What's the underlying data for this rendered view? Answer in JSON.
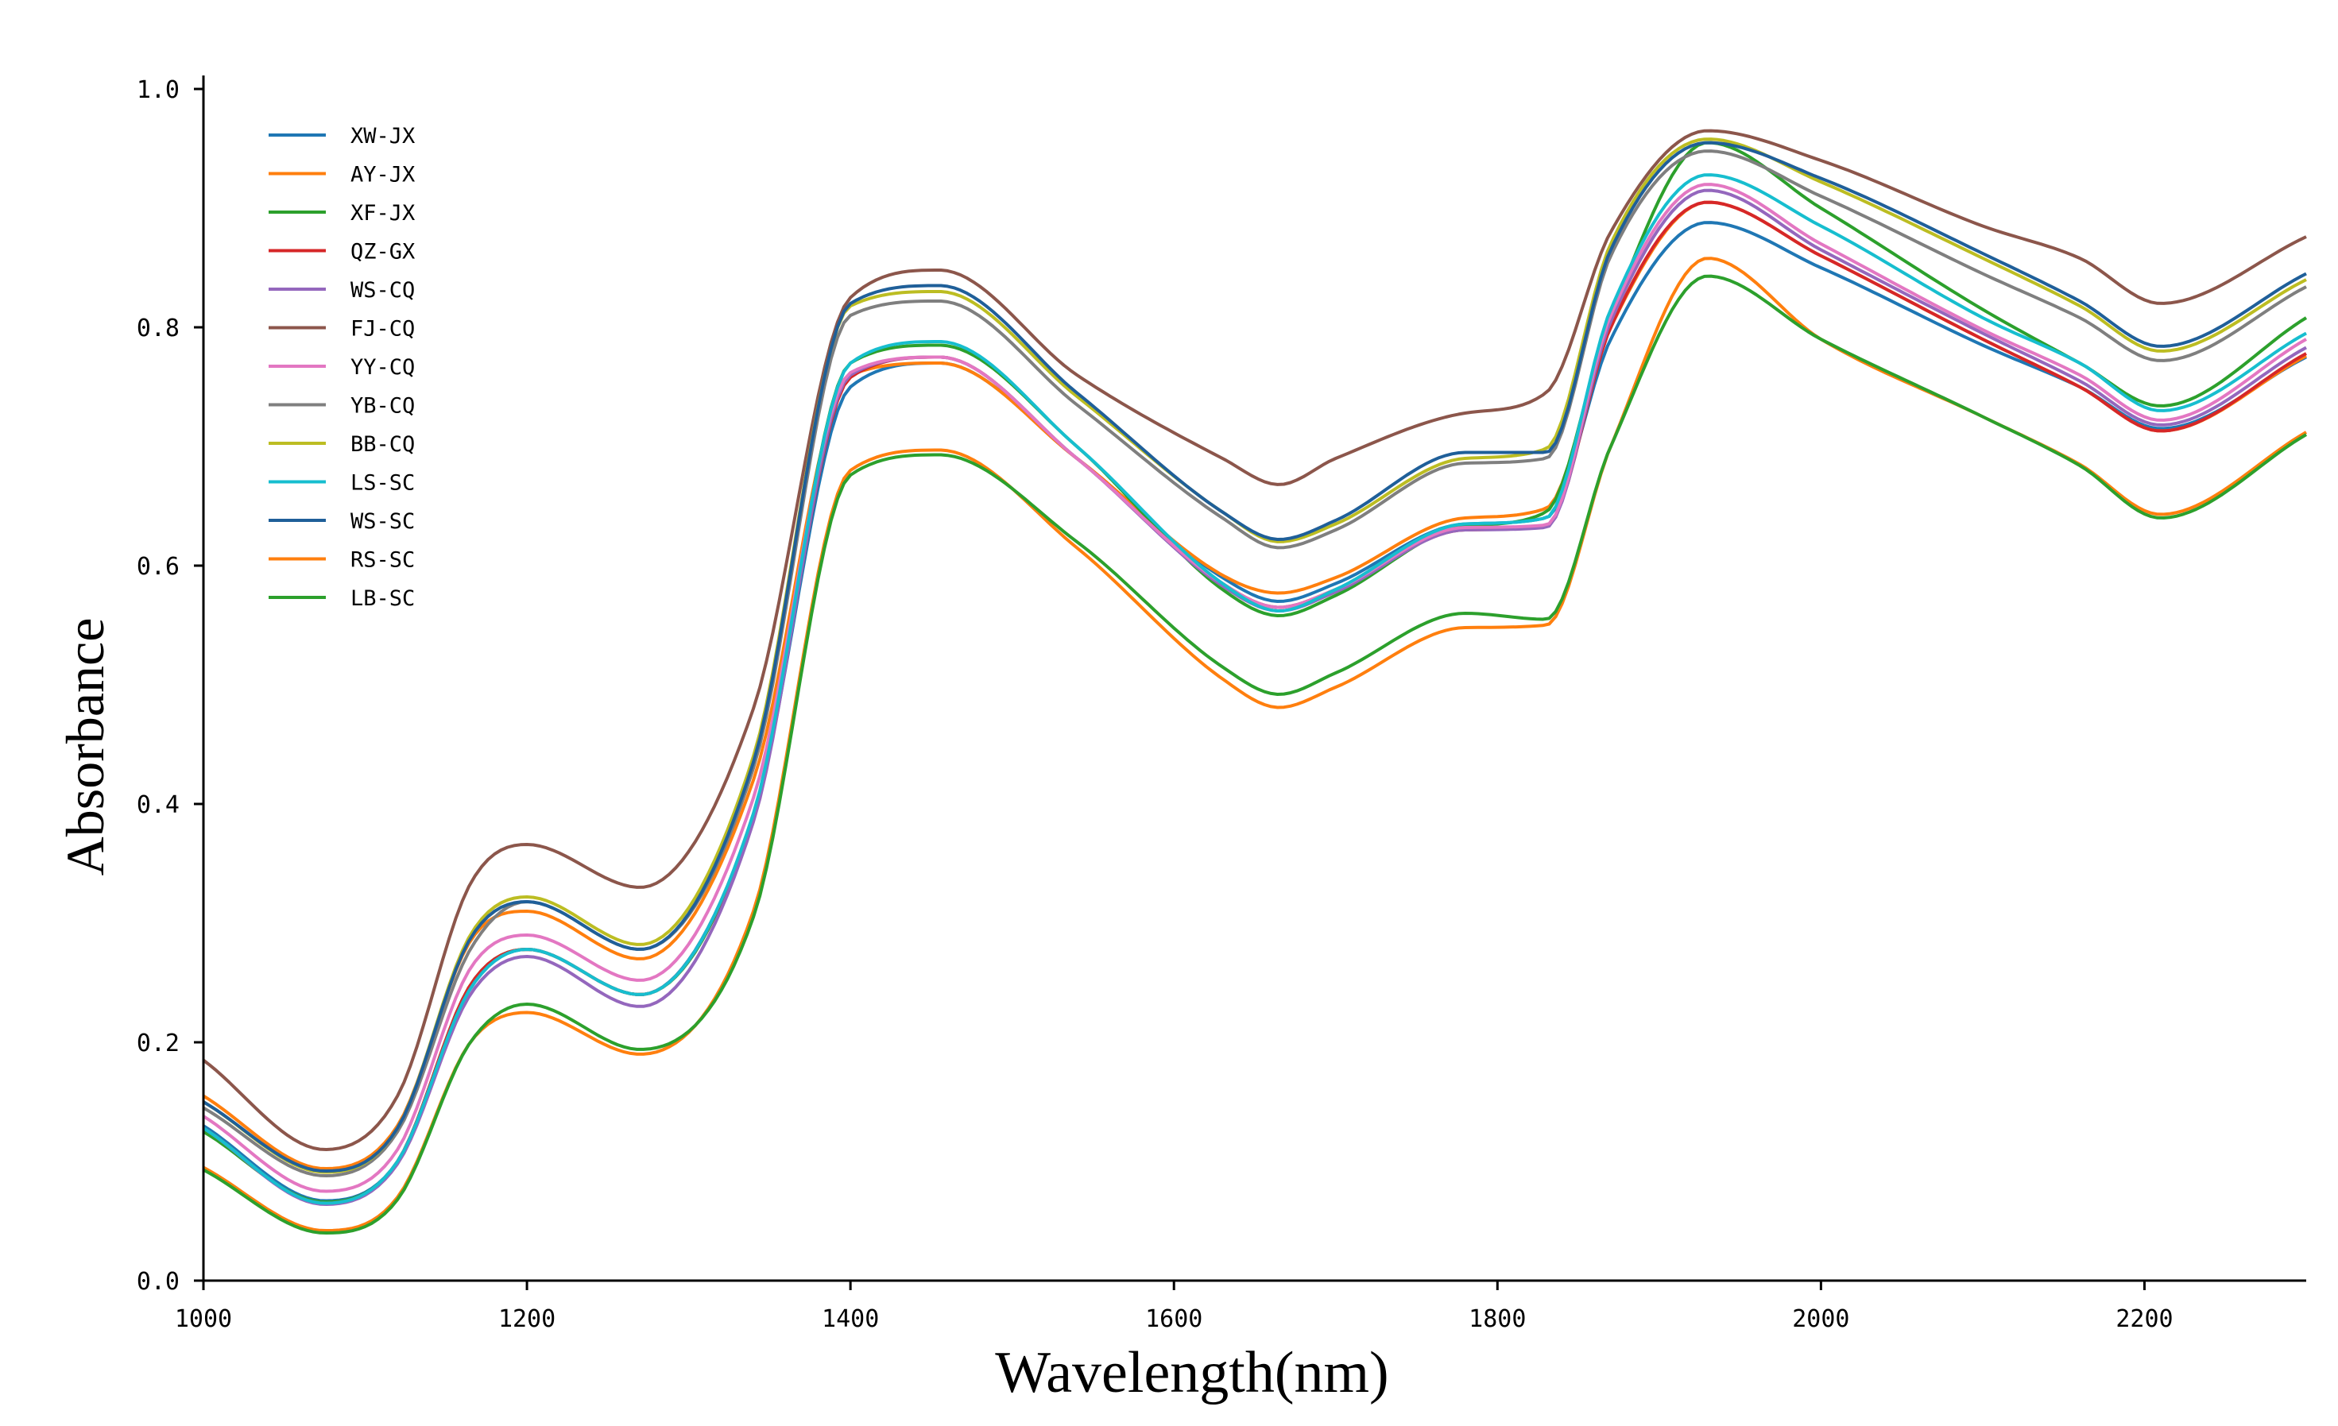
{
  "chart_data": {
    "type": "line",
    "title": "",
    "xlabel": "Wavelength(nm)",
    "ylabel": "Absorbance",
    "xlim": [
      1000,
      2300
    ],
    "ylim": [
      0.0,
      1.0
    ],
    "xticks": [
      1000,
      1200,
      1400,
      1600,
      1800,
      2000,
      2200
    ],
    "xtick_labels": [
      "1000",
      "1200",
      "1400",
      "1600",
      "1800",
      "2000",
      "2200"
    ],
    "yticks": [
      0.0,
      0.2,
      0.4,
      0.6,
      0.8,
      1.0
    ],
    "ytick_labels": [
      "0.0",
      "0.2",
      "0.4",
      "0.6",
      "0.8",
      "1.0"
    ],
    "grid": false,
    "legend_position": "top-left",
    "x": [
      1000,
      1075,
      1120,
      1165,
      1200,
      1270,
      1340,
      1400,
      1455,
      1540,
      1630,
      1665,
      1700,
      1780,
      1830,
      1870,
      1930,
      2000,
      2100,
      2160,
      2210,
      2300
    ],
    "series": [
      {
        "name": "XW-JX",
        "color": "#1f77b4",
        "values": [
          0.13,
          0.067,
          0.1,
          0.245,
          0.278,
          0.24,
          0.39,
          0.75,
          0.77,
          0.69,
          0.59,
          0.57,
          0.585,
          0.635,
          0.64,
          0.79,
          0.888,
          0.85,
          0.785,
          0.75,
          0.715,
          0.775
        ]
      },
      {
        "name": "AY-JX",
        "color": "#ff7f0e",
        "values": [
          0.155,
          0.094,
          0.13,
          0.285,
          0.31,
          0.27,
          0.42,
          0.76,
          0.77,
          0.69,
          0.592,
          0.577,
          0.59,
          0.64,
          0.648,
          0.8,
          0.905,
          0.86,
          0.79,
          0.75,
          0.713,
          0.776
        ]
      },
      {
        "name": "XF-JX",
        "color": "#2ca02c",
        "values": [
          0.125,
          0.066,
          0.1,
          0.248,
          0.278,
          0.24,
          0.39,
          0.77,
          0.785,
          0.7,
          0.58,
          0.558,
          0.575,
          0.633,
          0.645,
          0.81,
          0.955,
          0.9,
          0.815,
          0.77,
          0.734,
          0.808
        ]
      },
      {
        "name": "QZ-GX",
        "color": "#d62728",
        "values": [
          0.128,
          0.065,
          0.1,
          0.248,
          0.278,
          0.24,
          0.39,
          0.758,
          0.775,
          0.69,
          0.585,
          0.565,
          0.58,
          0.63,
          0.633,
          0.8,
          0.905,
          0.86,
          0.79,
          0.75,
          0.713,
          0.778
        ]
      },
      {
        "name": "WS-CQ",
        "color": "#9467bd",
        "values": [
          0.128,
          0.064,
          0.098,
          0.24,
          0.272,
          0.23,
          0.385,
          0.76,
          0.775,
          0.69,
          0.583,
          0.562,
          0.578,
          0.63,
          0.632,
          0.805,
          0.915,
          0.865,
          0.795,
          0.755,
          0.718,
          0.783
        ]
      },
      {
        "name": "FJ-CQ",
        "color": "#8c564b",
        "values": [
          0.185,
          0.11,
          0.155,
          0.333,
          0.366,
          0.33,
          0.48,
          0.825,
          0.848,
          0.76,
          0.69,
          0.668,
          0.69,
          0.728,
          0.745,
          0.88,
          0.965,
          0.94,
          0.885,
          0.858,
          0.82,
          0.876
        ]
      },
      {
        "name": "YY-CQ",
        "color": "#e377c2",
        "values": [
          0.138,
          0.075,
          0.11,
          0.262,
          0.29,
          0.252,
          0.405,
          0.762,
          0.775,
          0.69,
          0.585,
          0.565,
          0.58,
          0.632,
          0.634,
          0.81,
          0.92,
          0.87,
          0.798,
          0.76,
          0.722,
          0.79
        ]
      },
      {
        "name": "YB-CQ",
        "color": "#7f7f7f",
        "values": [
          0.145,
          0.088,
          0.125,
          0.278,
          0.318,
          0.278,
          0.43,
          0.81,
          0.822,
          0.735,
          0.64,
          0.615,
          0.63,
          0.686,
          0.69,
          0.86,
          0.948,
          0.91,
          0.845,
          0.808,
          0.772,
          0.834
        ]
      },
      {
        "name": "BB-CQ",
        "color": "#bcbd22",
        "values": [
          0.15,
          0.091,
          0.128,
          0.29,
          0.322,
          0.282,
          0.44,
          0.818,
          0.83,
          0.742,
          0.645,
          0.62,
          0.635,
          0.69,
          0.698,
          0.87,
          0.958,
          0.922,
          0.858,
          0.818,
          0.78,
          0.84
        ]
      },
      {
        "name": "LS-SC",
        "color": "#17becf",
        "values": [
          0.128,
          0.065,
          0.1,
          0.245,
          0.278,
          0.24,
          0.392,
          0.77,
          0.788,
          0.7,
          0.585,
          0.562,
          0.58,
          0.635,
          0.64,
          0.815,
          0.928,
          0.885,
          0.808,
          0.77,
          0.73,
          0.795
        ]
      },
      {
        "name": "WS-SC",
        "color": "#1f5f99",
        "values": [
          0.15,
          0.092,
          0.128,
          0.287,
          0.318,
          0.278,
          0.435,
          0.82,
          0.835,
          0.745,
          0.645,
          0.622,
          0.638,
          0.695,
          0.695,
          0.865,
          0.955,
          0.925,
          0.862,
          0.822,
          0.784,
          0.845
        ]
      },
      {
        "name": "RS-SC",
        "color": "#ff7f0e",
        "values": [
          0.095,
          0.042,
          0.07,
          0.2,
          0.225,
          0.19,
          0.31,
          0.68,
          0.697,
          0.615,
          0.505,
          0.481,
          0.498,
          0.548,
          0.55,
          0.7,
          0.858,
          0.79,
          0.725,
          0.685,
          0.643,
          0.712
        ]
      },
      {
        "name": "LB-SC",
        "color": "#2ca02c",
        "values": [
          0.093,
          0.04,
          0.068,
          0.2,
          0.232,
          0.194,
          0.305,
          0.676,
          0.693,
          0.62,
          0.515,
          0.492,
          0.51,
          0.56,
          0.555,
          0.7,
          0.843,
          0.79,
          0.725,
          0.684,
          0.64,
          0.71
        ]
      }
    ]
  }
}
